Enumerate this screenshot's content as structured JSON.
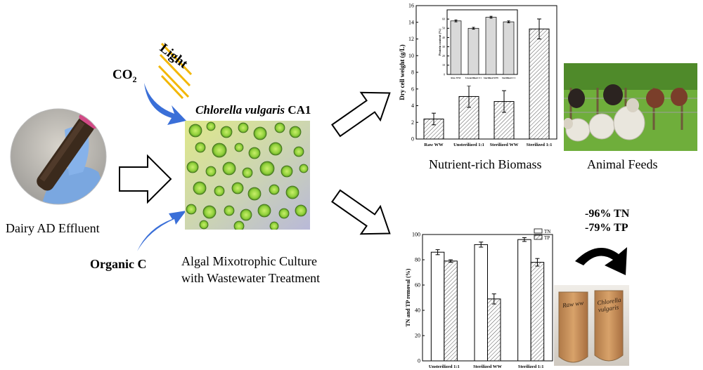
{
  "labels": {
    "light": "Light",
    "co2_main": "CO",
    "co2_sub": "2",
    "organism_italic": "Chlorella vulgaris",
    "organism_strain": "CA1",
    "dairy": "Dairy AD Effluent",
    "organic_c": "Organic C",
    "culture_line1": "Algal Mixotrophic Culture",
    "culture_line2": "with Wastewater Treatment",
    "biomass": "Nutrient-rich Biomass",
    "feeds": "Animal Feeds",
    "tn_reduction": "-96% TN",
    "tp_reduction": "-79% TP",
    "tube_left_label": "Raw ww",
    "tube_right_label": "Chlorella vulgaris"
  },
  "colors": {
    "arrow_blue": "#3a6fd8",
    "light_ray": "#f2b705",
    "bar_fill": "#d9d9d9",
    "algae_green": "#8fcf3a",
    "effluent_brown": "#6b4a2e"
  },
  "chart_data": [
    {
      "type": "bar",
      "ylabel": "Dry cell weight (g/L)",
      "categories": [
        "Raw WW",
        "Unsterilized 1:1",
        "Sterilized WW",
        "Sterilized 1:1"
      ],
      "values": [
        2.4,
        5.1,
        4.5,
        13.2
      ],
      "errors": [
        0.7,
        1.3,
        1.3,
        1.2
      ],
      "ylim": [
        0,
        16
      ],
      "yticks": [
        "0",
        "2",
        "4",
        "6",
        "8",
        "10",
        "12",
        "14",
        "16"
      ],
      "pattern": "hatched"
    },
    {
      "type": "bar",
      "ylabel": "Protein content (%)",
      "categories": [
        "Raw WW",
        "Unsterilized 1:1",
        "Sterilized WW",
        "Sterilized 1:1"
      ],
      "values": [
        58,
        50,
        62,
        57
      ],
      "errors": [
        1,
        1,
        1,
        1
      ],
      "ylim": [
        0,
        70
      ],
      "yticks": [
        "0",
        "10",
        "20",
        "30",
        "40",
        "50",
        "60"
      ],
      "legend": [
        "Raw WW",
        "Unsterilized 1:1",
        "Sterilized WW",
        "Sterilized 1:1"
      ]
    },
    {
      "type": "bar",
      "ylabel": "TN and TP removal (%)",
      "categories": [
        "Unsterilized 1:1",
        "Sterilized WW",
        "Sterilized 1:1"
      ],
      "series": [
        {
          "name": "TN",
          "values": [
            86,
            92,
            96
          ],
          "errors": [
            2,
            2,
            1.5
          ]
        },
        {
          "name": "TP",
          "values": [
            79,
            49,
            78
          ],
          "errors": [
            1,
            4,
            3
          ]
        }
      ],
      "ylim": [
        0,
        100
      ],
      "yticks": [
        "0",
        "20",
        "40",
        "60",
        "80",
        "100"
      ],
      "legend_position": "top-right"
    }
  ]
}
